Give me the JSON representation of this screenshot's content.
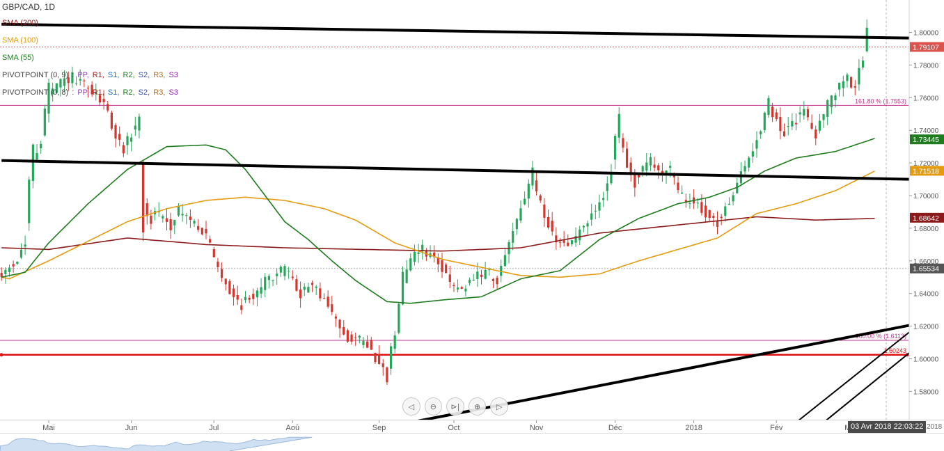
{
  "symbol": "GBP/CAD, 1D",
  "legend": {
    "sma200": {
      "label": "SMA (200)",
      "color": "#8b1a1a"
    },
    "sma100": {
      "label": "SMA (100)",
      "color": "#e39b10"
    },
    "sma55": {
      "label": "SMA (55)",
      "color": "#1e7b1e"
    },
    "pivot1": {
      "label": "PIVOTPOINT (0, 9)",
      "sep": ":",
      "items": [
        "PP,",
        "R1,",
        "S1,",
        "R2,",
        "S2,",
        "R3,",
        "S3"
      ]
    },
    "pivot2": {
      "label": "PIVOTPOINT (0, 8)",
      "sep": ":",
      "items": [
        "PP,",
        "R1,",
        "S1,",
        "R2,",
        "S2,",
        "R3,",
        "S3"
      ]
    }
  },
  "navigation": {
    "scroll_left": "◁",
    "zoom_out": "⊖",
    "reset": "⊳|",
    "zoom_in": "⊕",
    "scroll_right": "▷"
  },
  "crosshair_date": "03 Avr 2018 22:03:22",
  "axis_year_clip": "2018",
  "chart_data": {
    "type": "candlestick",
    "y_axis": {
      "ylim": [
        1.561,
        1.82
      ],
      "ticks": [
        "1.58000",
        "1.60000",
        "1.62000",
        "1.64000",
        "1.66000",
        "1.68000",
        "1.70000",
        "1.72000",
        "1.74000",
        "1.76000",
        "1.78000",
        "1.80000"
      ],
      "position": "right"
    },
    "x_axis": {
      "xlim": [
        -12,
        228
      ],
      "labels": [
        {
          "t": 0,
          "text": "Mai"
        },
        {
          "t": 21,
          "text": "Jun"
        },
        {
          "t": 42,
          "text": "Jul"
        },
        {
          "t": 62,
          "text": "Aoû"
        },
        {
          "t": 84,
          "text": "Sep"
        },
        {
          "t": 103,
          "text": "Oct"
        },
        {
          "t": 124,
          "text": "Nov"
        },
        {
          "t": 144,
          "text": "Déc"
        },
        {
          "t": 164,
          "text": "2018"
        },
        {
          "t": 185,
          "text": "Fév"
        },
        {
          "t": 204,
          "text": "Mar"
        }
      ]
    },
    "colors": {
      "up": "#26a65b",
      "down": "#d6352d"
    },
    "key_points": [
      [
        -12,
        1.65
      ],
      [
        -8,
        1.66
      ],
      [
        -6,
        1.668
      ],
      [
        -4,
        1.72
      ],
      [
        -2,
        1.73
      ],
      [
        0,
        1.76
      ],
      [
        3,
        1.768
      ],
      [
        6,
        1.772
      ],
      [
        9,
        1.768
      ],
      [
        12,
        1.762
      ],
      [
        15,
        1.755
      ],
      [
        17,
        1.738
      ],
      [
        19,
        1.73
      ],
      [
        21,
        1.736
      ],
      [
        23,
        1.745
      ],
      [
        24,
        1.7
      ],
      [
        26,
        1.685
      ],
      [
        28,
        1.69
      ],
      [
        31,
        1.682
      ],
      [
        33,
        1.69
      ],
      [
        35,
        1.688
      ],
      [
        37,
        1.684
      ],
      [
        39,
        1.68
      ],
      [
        41,
        1.672
      ],
      [
        43,
        1.658
      ],
      [
        46,
        1.644
      ],
      [
        49,
        1.634
      ],
      [
        52,
        1.638
      ],
      [
        55,
        1.646
      ],
      [
        58,
        1.652
      ],
      [
        61,
        1.655
      ],
      [
        64,
        1.64
      ],
      [
        67,
        1.645
      ],
      [
        70,
        1.638
      ],
      [
        73,
        1.625
      ],
      [
        76,
        1.615
      ],
      [
        79,
        1.612
      ],
      [
        82,
        1.608
      ],
      [
        84,
        1.598
      ],
      [
        86,
        1.59
      ],
      [
        88,
        1.61
      ],
      [
        90,
        1.645
      ],
      [
        92,
        1.66
      ],
      [
        95,
        1.668
      ],
      [
        98,
        1.662
      ],
      [
        101,
        1.655
      ],
      [
        103,
        1.645
      ],
      [
        106,
        1.642
      ],
      [
        109,
        1.65
      ],
      [
        112,
        1.652
      ],
      [
        114,
        1.646
      ],
      [
        116,
        1.66
      ],
      [
        118,
        1.676
      ],
      [
        120,
        1.69
      ],
      [
        122,
        1.702
      ],
      [
        123,
        1.712
      ],
      [
        125,
        1.7
      ],
      [
        127,
        1.685
      ],
      [
        129,
        1.672
      ],
      [
        132,
        1.67
      ],
      [
        135,
        1.676
      ],
      [
        138,
        1.686
      ],
      [
        141,
        1.696
      ],
      [
        143,
        1.712
      ],
      [
        145,
        1.742
      ],
      [
        147,
        1.722
      ],
      [
        149,
        1.708
      ],
      [
        151,
        1.716
      ],
      [
        153,
        1.72
      ],
      [
        156,
        1.715
      ],
      [
        158,
        1.718
      ],
      [
        160,
        1.705
      ],
      [
        162,
        1.698
      ],
      [
        165,
        1.695
      ],
      [
        168,
        1.688
      ],
      [
        170,
        1.682
      ],
      [
        172,
        1.69
      ],
      [
        175,
        1.705
      ],
      [
        178,
        1.72
      ],
      [
        181,
        1.738
      ],
      [
        183,
        1.756
      ],
      [
        185,
        1.748
      ],
      [
        187,
        1.738
      ],
      [
        190,
        1.745
      ],
      [
        192,
        1.752
      ],
      [
        195,
        1.74
      ],
      [
        197,
        1.748
      ],
      [
        199,
        1.758
      ],
      [
        201,
        1.765
      ],
      [
        203,
        1.772
      ],
      [
        205,
        1.768
      ],
      [
        207,
        1.778
      ],
      [
        208,
        1.794
      ]
    ],
    "sma200": [
      [
        -12,
        1.668
      ],
      [
        0,
        1.667
      ],
      [
        20,
        1.674
      ],
      [
        40,
        1.67
      ],
      [
        60,
        1.668
      ],
      [
        80,
        1.667
      ],
      [
        100,
        1.666
      ],
      [
        120,
        1.668
      ],
      [
        140,
        1.677
      ],
      [
        160,
        1.682
      ],
      [
        180,
        1.687
      ],
      [
        195,
        1.685
      ],
      [
        210,
        1.686
      ]
    ],
    "sma100": [
      [
        -12,
        1.65
      ],
      [
        -10,
        1.649
      ],
      [
        0,
        1.66
      ],
      [
        10,
        1.672
      ],
      [
        20,
        1.684
      ],
      [
        30,
        1.692
      ],
      [
        40,
        1.697
      ],
      [
        50,
        1.699
      ],
      [
        60,
        1.697
      ],
      [
        70,
        1.692
      ],
      [
        78,
        1.685
      ],
      [
        88,
        1.671
      ],
      [
        100,
        1.661
      ],
      [
        110,
        1.656
      ],
      [
        120,
        1.651
      ],
      [
        130,
        1.65
      ],
      [
        140,
        1.652
      ],
      [
        150,
        1.66
      ],
      [
        160,
        1.667
      ],
      [
        170,
        1.674
      ],
      [
        180,
        1.689
      ],
      [
        190,
        1.695
      ],
      [
        200,
        1.703
      ],
      [
        210,
        1.715
      ]
    ],
    "sma55": [
      [
        -12,
        1.65
      ],
      [
        -6,
        1.653
      ],
      [
        0,
        1.671
      ],
      [
        10,
        1.695
      ],
      [
        20,
        1.716
      ],
      [
        30,
        1.73
      ],
      [
        40,
        1.731
      ],
      [
        45,
        1.728
      ],
      [
        50,
        1.716
      ],
      [
        55,
        1.7
      ],
      [
        60,
        1.684
      ],
      [
        66,
        1.673
      ],
      [
        72,
        1.66
      ],
      [
        78,
        1.648
      ],
      [
        86,
        1.635
      ],
      [
        92,
        1.634
      ],
      [
        100,
        1.636
      ],
      [
        110,
        1.638
      ],
      [
        120,
        1.649
      ],
      [
        130,
        1.654
      ],
      [
        140,
        1.673
      ],
      [
        150,
        1.686
      ],
      [
        160,
        1.695
      ],
      [
        168,
        1.699
      ],
      [
        175,
        1.705
      ],
      [
        182,
        1.715
      ],
      [
        190,
        1.723
      ],
      [
        200,
        1.727
      ],
      [
        210,
        1.735
      ]
    ],
    "trendlines": [
      {
        "name": "upper-resistance",
        "p1": [
          -12,
          1.805
        ],
        "p2": [
          228,
          1.7962
        ],
        "width": 4
      },
      {
        "name": "middle-resistance",
        "p1": [
          -12,
          1.7215
        ],
        "p2": [
          228,
          1.7095
        ],
        "width": 4
      },
      {
        "name": "lower-support",
        "p1": [
          92,
          1.561
        ],
        "p2": [
          228,
          1.6248
        ],
        "width": 4
      },
      {
        "name": "channel-a",
        "p1": [
          190,
          1.561
        ],
        "p2": [
          228,
          1.634
        ],
        "width": 2
      },
      {
        "name": "channel-b",
        "p1": [
          197,
          1.561
        ],
        "p2": [
          228,
          1.6216
        ],
        "width": 2
      }
    ],
    "horizontal_levels": [
      {
        "name": "fib-161",
        "value": 1.7553,
        "label": "161.80 % (1.7553)",
        "color": "#c0308a",
        "style": "solid",
        "width": 1
      },
      {
        "name": "fib-100",
        "value": 1.6113,
        "label": "100.00 % (1.6113)",
        "color": "#c0308a",
        "style": "solid",
        "width": 1
      },
      {
        "name": "support",
        "value": 1.60243,
        "label": "1.60243",
        "color": "#e01010",
        "style": "solid",
        "width": 2.5
      },
      {
        "name": "last-price",
        "value": 1.79107,
        "label": "",
        "color": "#d85050",
        "style": "dotted",
        "width": 1
      },
      {
        "name": "ref-level",
        "value": 1.65534,
        "label": "",
        "color": "#aaaaaa",
        "style": "dotted",
        "width": 1
      }
    ],
    "price_labels": [
      {
        "name": "last-price",
        "value": 1.79107,
        "text": "1.79107",
        "bg": "#d9534f"
      },
      {
        "name": "sma55-last",
        "value": 1.73445,
        "text": "1.73445",
        "bg": "#1e7b1e"
      },
      {
        "name": "sma100-last",
        "value": 1.71518,
        "text": "1.71518",
        "bg": "#e39b10"
      },
      {
        "name": "sma200-last",
        "value": 1.68642,
        "text": "1.68642",
        "bg": "#8b1a1a"
      },
      {
        "name": "ref-level",
        "value": 1.65534,
        "text": "1.65534",
        "bg": "#555555"
      }
    ]
  }
}
